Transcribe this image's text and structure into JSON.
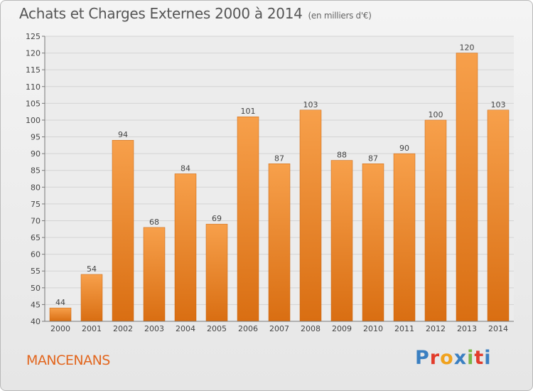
{
  "title": "Achats et Charges Externes 2000 à 2014",
  "unit": "(en milliers d'€)",
  "commune": "MANCENANS",
  "logo": {
    "text": "Proxiti",
    "letters": [
      {
        "char": "P",
        "color": "#3a7fc1"
      },
      {
        "char": "r",
        "color": "#e23c2b"
      },
      {
        "char": "o",
        "color": "#f0a21e"
      },
      {
        "char": "x",
        "color": "#3a7fc1"
      },
      {
        "char": "i",
        "color": "#7ab648"
      },
      {
        "char": "t",
        "color": "#e23c2b"
      },
      {
        "char": "i",
        "color": "#3a7fc1"
      }
    ]
  },
  "colors": {
    "bar_light": "#f7a04b",
    "bar_dark": "#d96e12",
    "grid": "#d4d4d4",
    "commune": "#e2661e"
  },
  "chart_data": {
    "type": "bar",
    "categories": [
      "2000",
      "2001",
      "2002",
      "2003",
      "2004",
      "2005",
      "2006",
      "2007",
      "2008",
      "2009",
      "2010",
      "2011",
      "2012",
      "2013",
      "2014"
    ],
    "values": [
      44,
      54,
      94,
      68,
      84,
      69,
      101,
      87,
      103,
      88,
      87,
      90,
      100,
      120,
      103
    ],
    "title": "Achats et Charges Externes 2000 à 2014",
    "ylim": [
      40,
      125
    ],
    "yticks": [
      40,
      45,
      50,
      55,
      60,
      65,
      70,
      75,
      80,
      85,
      90,
      95,
      100,
      105,
      110,
      115,
      120,
      125
    ],
    "grid": true,
    "legend": "none"
  }
}
